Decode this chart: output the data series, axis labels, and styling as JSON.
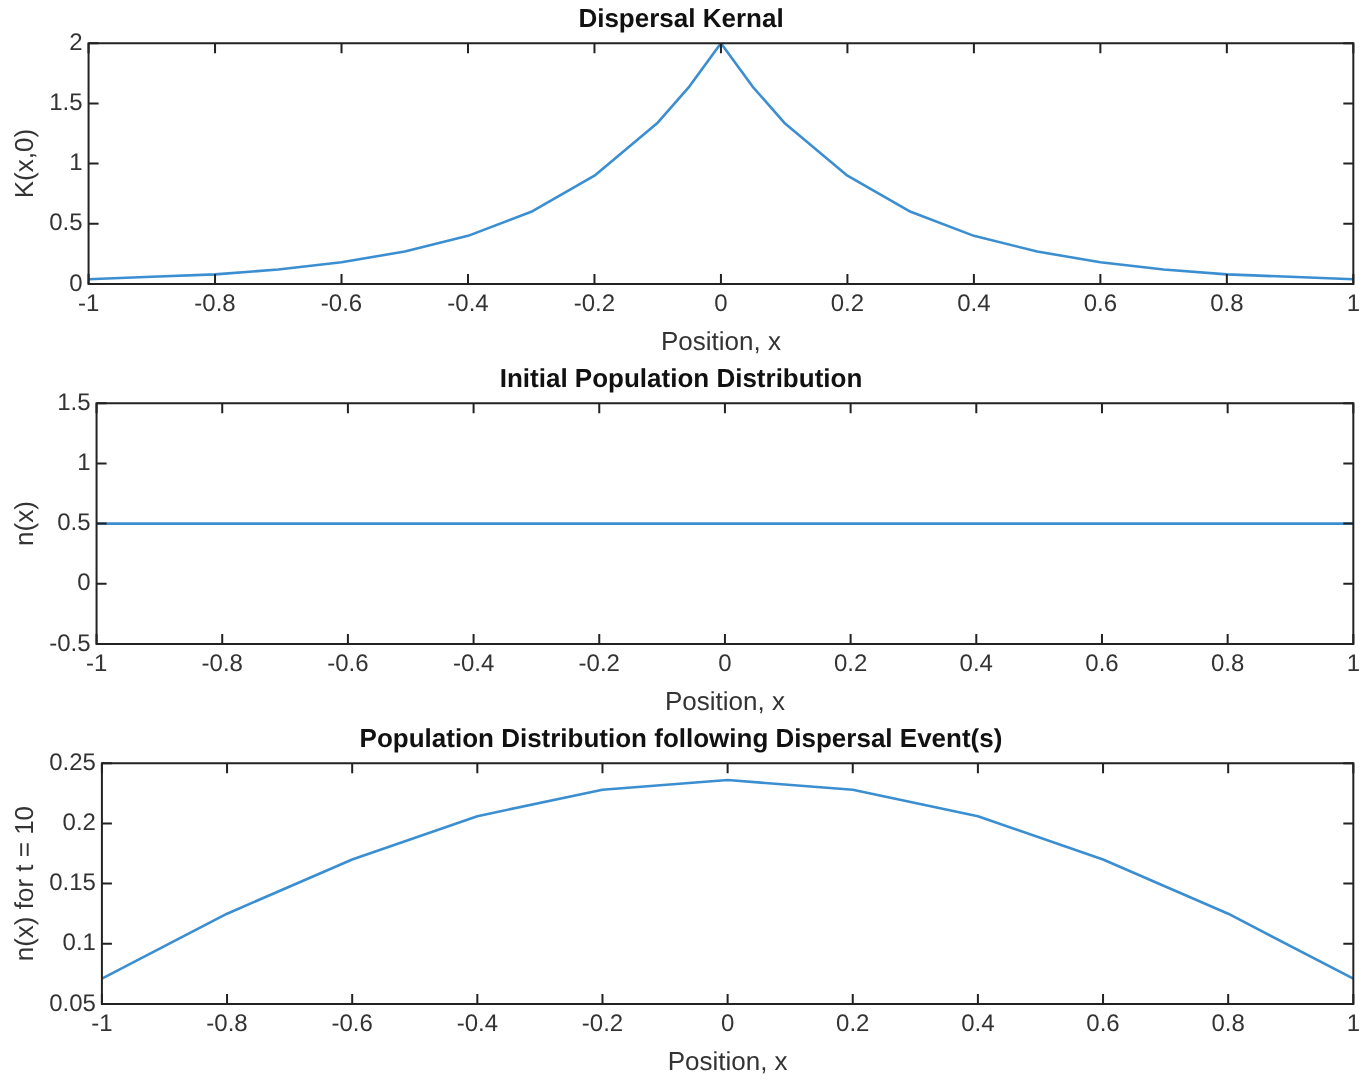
{
  "chart_data": [
    {
      "type": "line",
      "title": "Dispersal Kernal",
      "xlabel": "Position, x",
      "ylabel": "K(x,0)",
      "x": [
        -1,
        -0.9,
        -0.8,
        -0.7,
        -0.6,
        -0.5,
        -0.4,
        -0.3,
        -0.2,
        -0.1,
        -0.05,
        0,
        0.05,
        0.1,
        0.2,
        0.3,
        0.4,
        0.5,
        0.6,
        0.7,
        0.8,
        0.9,
        1
      ],
      "series": [
        {
          "color": "#3b8fd1",
          "values": [
            0.04,
            0.06,
            0.08,
            0.12,
            0.18,
            0.27,
            0.4,
            0.6,
            0.9,
            1.34,
            1.64,
            2,
            1.64,
            1.34,
            0.9,
            0.6,
            0.4,
            0.27,
            0.18,
            0.12,
            0.08,
            0.06,
            0.04
          ]
        }
      ],
      "xlim": [
        -1,
        1
      ],
      "ylim": [
        0,
        2
      ],
      "xticks": [
        -1,
        -0.8,
        -0.6,
        -0.4,
        -0.2,
        0,
        0.2,
        0.4,
        0.6,
        0.8,
        1
      ],
      "yticks": [
        0,
        0.5,
        1,
        1.5,
        2
      ]
    },
    {
      "type": "line",
      "title": "Initial Population Distribution",
      "xlabel": "Position, x",
      "ylabel": "n(x)",
      "x": [
        -1,
        1
      ],
      "series": [
        {
          "color": "#3b8fd1",
          "values": [
            0.5,
            0.5
          ]
        }
      ],
      "xlim": [
        -1,
        1
      ],
      "ylim": [
        -0.5,
        1.5
      ],
      "xticks": [
        -1,
        -0.8,
        -0.6,
        -0.4,
        -0.2,
        0,
        0.2,
        0.4,
        0.6,
        0.8,
        1
      ],
      "yticks": [
        -0.5,
        0,
        0.5,
        1,
        1.5
      ]
    },
    {
      "type": "line",
      "title": "Population Distribution following Dispersal Event(s)",
      "xlabel": "Position, x",
      "ylabel": "n(x) for t = 10",
      "x": [
        -1,
        -0.8,
        -0.6,
        -0.4,
        -0.2,
        0,
        0.2,
        0.4,
        0.6,
        0.8,
        1
      ],
      "series": [
        {
          "color": "#3b8fd1",
          "values": [
            0.071,
            0.125,
            0.17,
            0.206,
            0.228,
            0.236,
            0.228,
            0.206,
            0.17,
            0.125,
            0.071
          ]
        }
      ],
      "xlim": [
        -1,
        1
      ],
      "ylim": [
        0.05,
        0.25
      ],
      "xticks": [
        -1,
        -0.8,
        -0.6,
        -0.4,
        -0.2,
        0,
        0.2,
        0.4,
        0.6,
        0.8,
        1
      ],
      "yticks": [
        0.05,
        0.1,
        0.15,
        0.2,
        0.25
      ]
    }
  ]
}
